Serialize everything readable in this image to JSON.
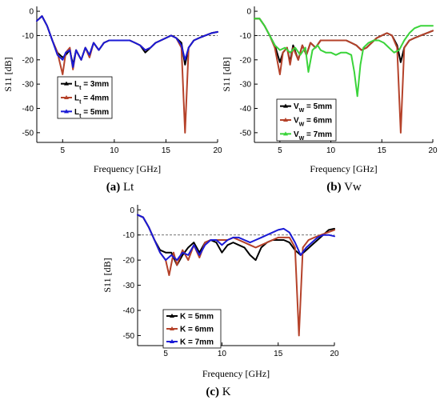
{
  "chart_data": [
    {
      "id": "a",
      "type": "line",
      "caption_letter": "(a)",
      "caption_text": " Lt",
      "xlabel": "Frequency [GHz]",
      "ylabel": "S11 [dB]",
      "xlim": [
        2.5,
        20
      ],
      "ylim": [
        -54,
        2
      ],
      "xticks": [
        5,
        10,
        15,
        20
      ],
      "yticks": [
        0,
        -10,
        -20,
        -30,
        -40,
        -50
      ],
      "ref_y": -10,
      "legend_position": "lower-left",
      "series": [
        {
          "name": "Lt = 3mm",
          "legend_main": "L",
          "legend_sub": "t",
          "legend_rest": " = 3mm",
          "color": "#000000",
          "x": [
            2.5,
            3,
            3.5,
            4,
            4.5,
            5,
            5.3,
            5.7,
            6,
            6.3,
            6.8,
            7.2,
            7.6,
            8,
            8.5,
            9,
            9.5,
            10,
            10.5,
            11,
            11.5,
            12,
            12.5,
            13,
            13.5,
            14,
            14.5,
            15,
            15.5,
            16,
            16.5,
            16.85,
            17.2,
            17.7,
            18.2,
            18.8,
            19.4,
            20
          ],
          "y": [
            -4,
            -2,
            -6,
            -12,
            -17,
            -19,
            -18,
            -16,
            -22,
            -16,
            -20,
            -15,
            -18,
            -13,
            -16,
            -13,
            -12,
            -12,
            -12,
            -12,
            -12,
            -13,
            -14,
            -17,
            -15,
            -13,
            -12,
            -11,
            -10,
            -11,
            -13,
            -22,
            -15,
            -12,
            -11,
            -10,
            -9,
            -8.5
          ]
        },
        {
          "name": "Lt = 4mm",
          "legend_main": "L",
          "legend_sub": "t",
          "legend_rest": " = 4mm",
          "color": "#b5422a",
          "x": [
            2.5,
            3,
            3.5,
            4,
            4.5,
            5,
            5.3,
            5.7,
            6,
            6.3,
            6.8,
            7.2,
            7.6,
            8,
            8.5,
            9,
            9.5,
            10,
            10.5,
            11,
            11.5,
            12,
            12.5,
            13,
            13.5,
            14,
            14.5,
            15,
            15.5,
            16,
            16.5,
            16.85,
            17.2,
            17.7,
            18.2,
            18.8,
            19.4,
            20
          ],
          "y": [
            -4,
            -2,
            -6,
            -12,
            -17,
            -26,
            -17,
            -15,
            -24,
            -16,
            -20,
            -15,
            -19,
            -13,
            -16,
            -13,
            -12,
            -12,
            -12,
            -12,
            -12,
            -13,
            -14,
            -16,
            -15,
            -13,
            -12,
            -11,
            -10,
            -11,
            -15,
            -50,
            -15,
            -12,
            -11,
            -10,
            -9,
            -8.5
          ]
        },
        {
          "name": "Lt = 5mm",
          "legend_main": "L",
          "legend_sub": "t",
          "legend_rest": " = 5mm",
          "color": "#1a1ad6",
          "x": [
            2.5,
            3,
            3.5,
            4,
            4.5,
            5,
            5.3,
            5.7,
            6,
            6.3,
            6.8,
            7.2,
            7.6,
            8,
            8.5,
            9,
            9.5,
            10,
            10.5,
            11,
            11.5,
            12,
            12.5,
            13,
            13.5,
            14,
            14.5,
            15,
            15.5,
            16,
            16.5,
            16.85,
            17.2,
            17.7,
            18.2,
            18.8,
            19.4,
            20
          ],
          "y": [
            -4,
            -2,
            -6,
            -12,
            -18,
            -20,
            -17,
            -16,
            -23,
            -16,
            -20,
            -15,
            -18,
            -13,
            -16,
            -13,
            -12,
            -12,
            -12,
            -12,
            -12,
            -13,
            -14,
            -16,
            -15,
            -13,
            -12,
            -11,
            -10,
            -11,
            -14,
            -20,
            -15,
            -12,
            -11,
            -10,
            -9,
            -8.5
          ]
        }
      ]
    },
    {
      "id": "b",
      "type": "line",
      "caption_letter": "(b)",
      "caption_text": " Vw",
      "xlabel": "Frequency [GHz]",
      "ylabel": "S11 [dB]",
      "xlim": [
        2.5,
        20
      ],
      "ylim": [
        -54,
        2
      ],
      "xticks": [
        5,
        10,
        15,
        20
      ],
      "yticks": [
        0,
        -10,
        -20,
        -30,
        -40,
        -50
      ],
      "ref_y": -10,
      "legend_position": "lower-left",
      "series": [
        {
          "name": "Vw = 5mm",
          "legend_main": "V",
          "legend_sub": "W",
          "legend_rest": " = 5mm",
          "color": "#000000",
          "x": [
            2.5,
            3,
            3.5,
            4,
            4.5,
            5,
            5.3,
            5.7,
            6,
            6.3,
            6.8,
            7.2,
            7.6,
            8,
            8.5,
            9,
            9.5,
            10,
            10.5,
            11,
            11.5,
            12,
            12.5,
            13,
            13.5,
            14,
            14.5,
            15,
            15.5,
            16,
            16.5,
            16.85,
            17.2,
            17.7,
            18.2,
            18.8,
            19.4,
            20
          ],
          "y": [
            -3,
            -3,
            -6,
            -10,
            -14,
            -21,
            -17,
            -15,
            -21,
            -14,
            -20,
            -14,
            -18,
            -13,
            -15,
            -12,
            -12,
            -12,
            -12,
            -12,
            -12,
            -13,
            -14,
            -16,
            -15,
            -13,
            -11,
            -10,
            -9,
            -10,
            -14,
            -21,
            -15,
            -12,
            -11,
            -10,
            -9,
            -8
          ]
        },
        {
          "name": "Vw = 6mm",
          "legend_main": "V",
          "legend_sub": "W",
          "legend_rest": " = 6mm",
          "color": "#b5422a",
          "x": [
            2.5,
            3,
            3.5,
            4,
            4.5,
            5,
            5.3,
            5.7,
            6,
            6.3,
            6.8,
            7.2,
            7.6,
            8,
            8.5,
            9,
            9.5,
            10,
            10.5,
            11,
            11.5,
            12,
            12.5,
            13,
            13.5,
            14,
            14.5,
            15,
            15.5,
            16,
            16.5,
            16.85,
            17.2,
            17.7,
            18.2,
            18.8,
            19.4,
            20
          ],
          "y": [
            -3,
            -3,
            -6,
            -10,
            -15,
            -26,
            -17,
            -15,
            -22,
            -15,
            -20,
            -14,
            -18,
            -13,
            -15,
            -12,
            -12,
            -12,
            -12,
            -12,
            -12,
            -13,
            -14,
            -16,
            -15,
            -13,
            -11,
            -10,
            -9,
            -10,
            -15,
            -50,
            -15,
            -12,
            -11,
            -10,
            -9,
            -8
          ]
        },
        {
          "name": "Vw = 7mm",
          "legend_main": "V",
          "legend_sub": "W",
          "legend_rest": " = 7mm",
          "color": "#3ad43a",
          "x": [
            2.5,
            3,
            3.5,
            4,
            4.5,
            5,
            5.5,
            6,
            6.5,
            7,
            7.5,
            7.8,
            8.2,
            8.7,
            9,
            9.5,
            10,
            10.5,
            11,
            11.5,
            12,
            12.3,
            12.6,
            12.9,
            13.2,
            13.7,
            14.2,
            14.7,
            15.2,
            15.7,
            16.2,
            16.7,
            17.2,
            17.7,
            18.2,
            18.8,
            19.4,
            20
          ],
          "y": [
            -3,
            -3,
            -6,
            -10,
            -14,
            -16,
            -15,
            -17,
            -15,
            -18,
            -15,
            -25,
            -16,
            -14,
            -16,
            -17,
            -17,
            -18,
            -17,
            -17,
            -18,
            -25,
            -35,
            -22,
            -15,
            -13,
            -12,
            -12,
            -13,
            -15,
            -17,
            -16,
            -12,
            -9,
            -7,
            -6,
            -6,
            -6
          ]
        }
      ]
    },
    {
      "id": "c",
      "type": "line",
      "caption_letter": "(c)",
      "caption_text": " K",
      "xlabel": "Frequency [GHz]",
      "ylabel": "S11 [dB]",
      "xlim": [
        2.5,
        20
      ],
      "ylim": [
        -54,
        2
      ],
      "xticks": [
        5,
        10,
        15,
        20
      ],
      "yticks": [
        0,
        -10,
        -20,
        -30,
        -40,
        -50
      ],
      "ref_y": -10,
      "legend_position": "lower-left",
      "series": [
        {
          "name": "K = 5mm",
          "legend_main": "K = 5mm",
          "legend_sub": "",
          "legend_rest": "",
          "color": "#000000",
          "x": [
            2.5,
            3,
            3.5,
            4,
            4.5,
            5,
            5.5,
            6,
            6.5,
            7,
            7.5,
            8,
            8.5,
            9,
            9.5,
            10,
            10.5,
            11,
            11.5,
            12,
            12.5,
            13,
            13.5,
            14,
            14.5,
            15,
            15.5,
            16,
            16.5,
            17,
            17.5,
            18,
            18.5,
            19,
            19.5,
            20
          ],
          "y": [
            -2,
            -3,
            -7,
            -12,
            -16,
            -17,
            -17,
            -22,
            -18,
            -15,
            -13,
            -17,
            -13,
            -12,
            -13,
            -17,
            -14,
            -13,
            -14,
            -15,
            -18,
            -20,
            -15,
            -13,
            -12,
            -12,
            -12,
            -13,
            -16,
            -18,
            -16,
            -14,
            -12,
            -10,
            -8,
            -7.5
          ]
        },
        {
          "name": "K = 6mm",
          "legend_main": "K = 6mm",
          "legend_sub": "",
          "legend_rest": "",
          "color": "#b5422a",
          "x": [
            2.5,
            3,
            3.5,
            4,
            4.5,
            5,
            5.3,
            5.7,
            6,
            6.5,
            7,
            7.5,
            8,
            8.5,
            9,
            9.5,
            10,
            10.5,
            11,
            11.5,
            12,
            12.5,
            13,
            13.5,
            14,
            14.5,
            15,
            15.5,
            16,
            16.5,
            16.85,
            17.2,
            17.7,
            18.2,
            18.8,
            19.4,
            20
          ],
          "y": [
            -2,
            -3,
            -7,
            -12,
            -17,
            -20,
            -26,
            -17,
            -22,
            -16,
            -20,
            -14,
            -19,
            -13,
            -12,
            -12,
            -12,
            -12,
            -11,
            -12,
            -13,
            -14,
            -15,
            -14,
            -13,
            -12,
            -11,
            -11,
            -11,
            -15,
            -50,
            -15,
            -12,
            -11,
            -10,
            -9,
            -8
          ]
        },
        {
          "name": "K = 7mm",
          "legend_main": "K = 7mm",
          "legend_sub": "",
          "legend_rest": "",
          "color": "#1a1ad6",
          "x": [
            2.5,
            3,
            3.5,
            4,
            4.5,
            5,
            5.5,
            6,
            6.5,
            7,
            7.5,
            8,
            8.5,
            9,
            9.5,
            10,
            10.5,
            11,
            11.5,
            12,
            12.5,
            13,
            13.5,
            14,
            14.5,
            15,
            15.5,
            16,
            16.5,
            17,
            17.5,
            18,
            18.5,
            19,
            19.5,
            20
          ],
          "y": [
            -2,
            -3,
            -7,
            -12,
            -17,
            -20,
            -18,
            -20,
            -17,
            -18,
            -14,
            -18,
            -14,
            -12,
            -12,
            -14,
            -12,
            -11,
            -11,
            -12,
            -13,
            -12,
            -11,
            -10,
            -9,
            -8,
            -7.5,
            -9,
            -13,
            -18,
            -15,
            -13,
            -11,
            -10,
            -10,
            -10.5
          ]
        }
      ]
    }
  ]
}
